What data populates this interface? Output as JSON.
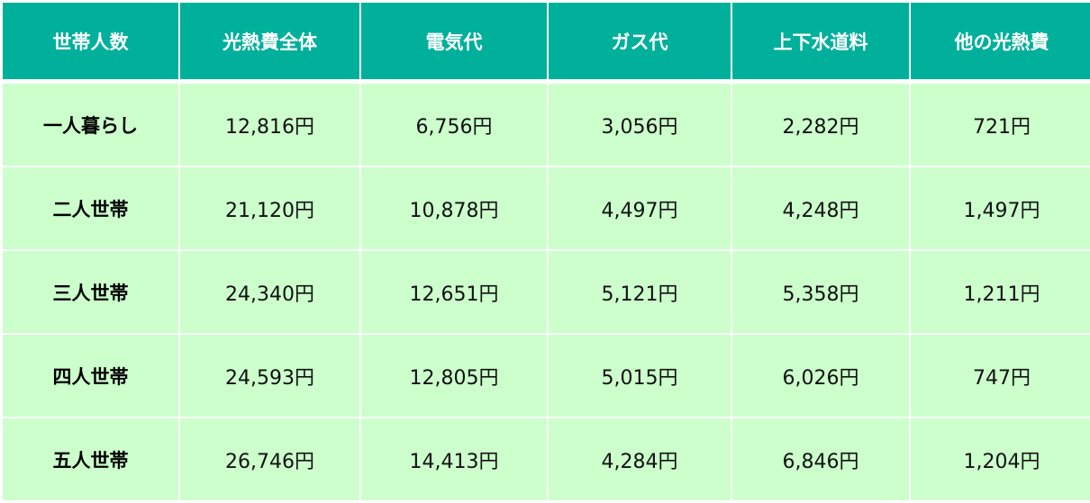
{
  "colors": {
    "header_bg": "#00b09a",
    "header_text": "#ffffff",
    "body_bg": "#ccffcc"
  },
  "headers": [
    "世帯人数",
    "光熱費全体",
    "電気代",
    "ガス代",
    "上下水道料",
    "他の光熱費"
  ],
  "rows": [
    [
      "一人暮らし",
      "12,816円",
      "6,756円",
      "3,056円",
      "2,282円",
      "721円"
    ],
    [
      "二人世帯",
      "21,120円",
      "10,878円",
      "4,497円",
      "4,248円",
      "1,497円"
    ],
    [
      "三人世帯",
      "24,340円",
      "12,651円",
      "5,121円",
      "5,358円",
      "1,211円"
    ],
    [
      "四人世帯",
      "24,593円",
      "12,805円",
      "5,015円",
      "6,026円",
      "747円"
    ],
    [
      "五人世帯",
      "26,746円",
      "14,413円",
      "4,284円",
      "6,846円",
      "1,204円"
    ]
  ]
}
